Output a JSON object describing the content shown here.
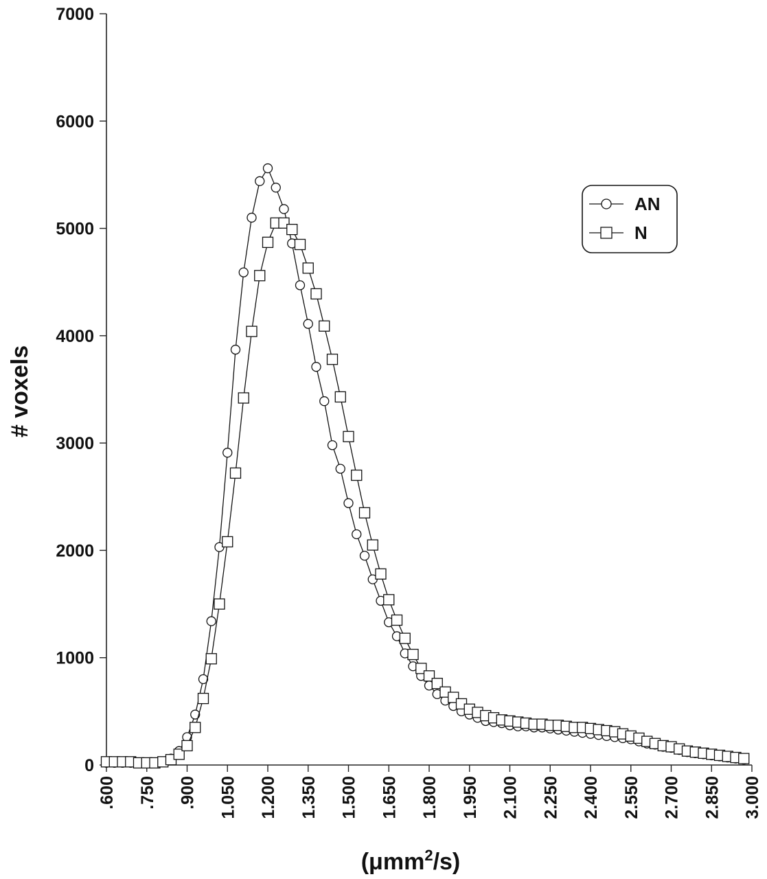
{
  "chart_data": {
    "type": "line",
    "title": "",
    "xlabel": "(μmm²/s)",
    "xlabel_parts": {
      "base": "(μmm",
      "sup": "2",
      "tail": "/s)"
    },
    "ylabel": "# voxels",
    "xlim": [
      0.6,
      3.0
    ],
    "ylim": [
      0,
      7000
    ],
    "xticks": [
      0.6,
      0.75,
      0.9,
      1.05,
      1.2,
      1.35,
      1.5,
      1.65,
      1.8,
      1.95,
      2.1,
      2.25,
      2.4,
      2.55,
      2.7,
      2.85,
      3.0
    ],
    "xtick_labels": [
      ".600",
      ".750",
      ".900",
      "1.050",
      "1.200",
      "1.350",
      "1.500",
      "1.650",
      "1.800",
      "1.950",
      "2.100",
      "2.250",
      "2.400",
      "2.550",
      "2.700",
      "2.850",
      "3.000"
    ],
    "yticks": [
      0,
      1000,
      2000,
      3000,
      4000,
      5000,
      6000,
      7000
    ],
    "ytick_labels": [
      "0",
      "1000",
      "2000",
      "3000",
      "4000",
      "5000",
      "6000",
      "7000"
    ],
    "grid": false,
    "legend_position": "top-right",
    "x": [
      0.6,
      0.63,
      0.66,
      0.69,
      0.72,
      0.75,
      0.78,
      0.81,
      0.84,
      0.87,
      0.9,
      0.93,
      0.96,
      0.99,
      1.02,
      1.05,
      1.08,
      1.11,
      1.14,
      1.17,
      1.2,
      1.23,
      1.26,
      1.29,
      1.32,
      1.35,
      1.38,
      1.41,
      1.44,
      1.47,
      1.5,
      1.53,
      1.56,
      1.59,
      1.62,
      1.65,
      1.68,
      1.71,
      1.74,
      1.77,
      1.8,
      1.83,
      1.86,
      1.89,
      1.92,
      1.95,
      1.98,
      2.01,
      2.04,
      2.07,
      2.1,
      2.13,
      2.16,
      2.19,
      2.22,
      2.25,
      2.28,
      2.31,
      2.34,
      2.37,
      2.4,
      2.43,
      2.46,
      2.49,
      2.52,
      2.55,
      2.58,
      2.61,
      2.64,
      2.67,
      2.7,
      2.73,
      2.76,
      2.79,
      2.82,
      2.85,
      2.88,
      2.91,
      2.94,
      2.97
    ],
    "series": [
      {
        "name": "AN",
        "marker": "circle",
        "values": [
          20,
          20,
          20,
          20,
          20,
          20,
          20,
          30,
          60,
          130,
          260,
          470,
          800,
          1340,
          2030,
          2910,
          3870,
          4590,
          5100,
          5440,
          5560,
          5380,
          5180,
          4860,
          4470,
          4110,
          3710,
          3390,
          2980,
          2760,
          2440,
          2150,
          1950,
          1730,
          1530,
          1330,
          1200,
          1040,
          920,
          830,
          740,
          660,
          600,
          550,
          500,
          470,
          440,
          410,
          400,
          390,
          370,
          360,
          360,
          350,
          350,
          340,
          330,
          320,
          310,
          300,
          290,
          280,
          270,
          260,
          250,
          240,
          220,
          200,
          190,
          170,
          160,
          140,
          120,
          110,
          100,
          90,
          80,
          70,
          60,
          50
        ]
      },
      {
        "name": "N",
        "marker": "square",
        "values": [
          30,
          30,
          30,
          30,
          20,
          20,
          20,
          30,
          50,
          100,
          180,
          350,
          620,
          990,
          1500,
          2080,
          2720,
          3420,
          4040,
          4560,
          4870,
          5050,
          5050,
          4990,
          4850,
          4630,
          4390,
          4090,
          3780,
          3430,
          3060,
          2700,
          2350,
          2050,
          1780,
          1540,
          1350,
          1180,
          1030,
          900,
          830,
          760,
          680,
          630,
          570,
          520,
          490,
          460,
          440,
          420,
          410,
          400,
          390,
          380,
          380,
          370,
          370,
          360,
          350,
          350,
          340,
          330,
          320,
          310,
          290,
          270,
          250,
          220,
          200,
          180,
          170,
          150,
          130,
          120,
          110,
          100,
          90,
          80,
          70,
          60
        ]
      }
    ]
  }
}
